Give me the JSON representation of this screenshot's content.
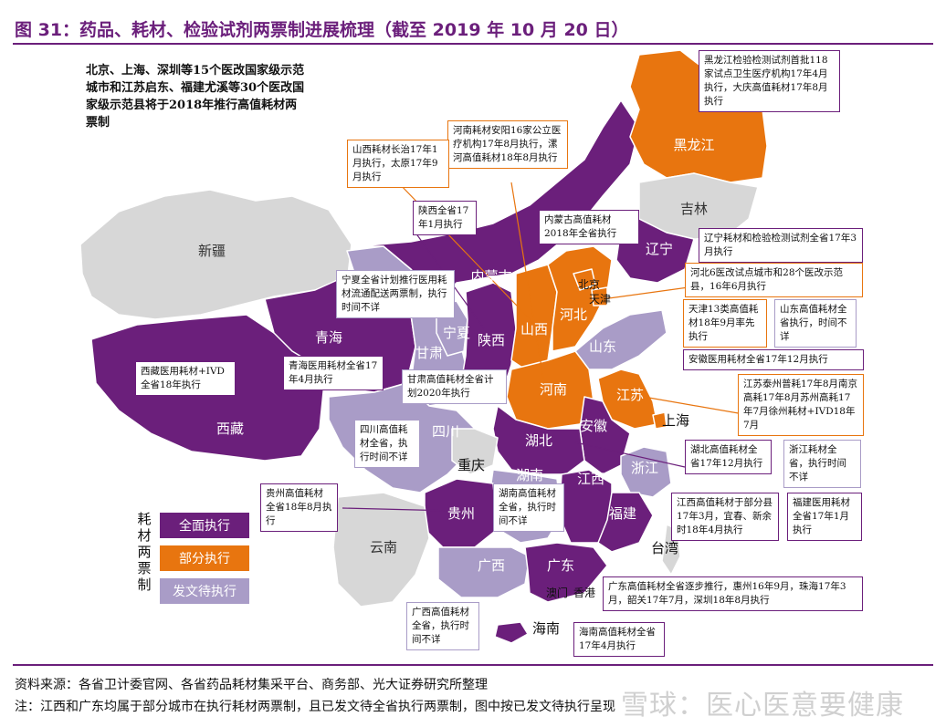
{
  "title": "图 31：药品、耗材、检验试剂两票制进展梳理（截至 2019 年 10 月 20 日）",
  "intro": "北京、上海、深圳等15个医改国家级示范城市和江苏启东、福建尤溪等30个医改国家级示范县将于2018年推行高值耗材两票制",
  "colors": {
    "full": "#6b1f7b",
    "partial": "#e8750f",
    "pending": "#a99cc7",
    "none": "#d7d7d7",
    "accent": "#6b1f7b"
  },
  "legend": {
    "title": "耗材两票制",
    "items": [
      {
        "label": "全面执行",
        "color": "#6b1f7b"
      },
      {
        "label": "部分执行",
        "color": "#e8750f"
      },
      {
        "label": "发文待执行",
        "color": "#a99cc7"
      }
    ]
  },
  "provinces": {
    "xinjiang": "新疆",
    "xizang": "西藏",
    "qinghai": "青海",
    "gansu": "甘肃",
    "ningxia": "宁夏",
    "neimenggu": "内蒙古",
    "heilongjiang": "黑龙江",
    "jilin": "吉林",
    "liaoning": "辽宁",
    "beijing": "北京",
    "tianjin": "天津",
    "hebei": "河北",
    "shanxi": "山西",
    "shandong": "山东",
    "shaanxi": "陕西",
    "henan": "河南",
    "jiangsu": "江苏",
    "shanghai": "上海",
    "anhui": "安徽",
    "hubei": "湖北",
    "sichuan": "四川",
    "chongqing": "重庆",
    "zhejiang": "浙江",
    "hunan": "湖南",
    "jiangxi": "江西",
    "guizhou": "贵州",
    "fujian": "福建",
    "yunnan": "云南",
    "guangxi": "广西",
    "guangdong": "广东",
    "taiwan": "台湾",
    "hainan": "海南",
    "aomen": "澳门",
    "xianggang": "香港"
  },
  "annotations": {
    "heilongjiang": "黑龙江检验检测试剂首批118家试点卫生医疗机构17年4月执行，大庆高值耗材17年8月执行",
    "henan": "河南耗材安阳16家公立医疗机构17年8月执行，漯河高值耗材18年8月执行",
    "shanxi": "山西耗材长治17年1月执行，太原17年9月执行",
    "shaanxi": "陕西全省17年1月执行",
    "neimenggu": "内蒙古高值耗材2018年全省执行",
    "liaoning": "辽宁耗材和检验检测试剂全省17年3月执行",
    "hebei": "河北6医改试点城市和28个医改示范县，16年6月执行",
    "ningxia": "宁夏全省计划推行医用耗材流通配送两票制，执行时间不详",
    "tianjin": "天津13类高值耗材18年9月率先执行",
    "shandong": "山东高值耗材全省执行，时间不详",
    "anhui": "安徽医用耗材全省17年12月执行",
    "qinghai": "青海医用耗材全省17年4月执行",
    "xizang": "西藏医用耗材+IVD全省18年执行",
    "gansu": "甘肃高值耗材全省计划2020年执行",
    "jiangsu": "江苏泰州普耗17年8月南京高耗17年8月苏州高耗17年7月徐州耗材+IVD18年7月",
    "sichuan": "四川高值耗材全省，执行时间不详",
    "hubei": "湖北高值耗材全省17年12月执行",
    "zhejiang": "浙江耗材全省，执行时间不详",
    "guizhou": "贵州高值耗材全省18年8月执行",
    "hunan": "湖南高值耗材全省，执行时间不详",
    "jiangxi": "江西高值耗材于部分县17年3月，宜春、新余时18年4月执行",
    "fujian": "福建医用耗材全省17年1月执行",
    "guangdong": "广东高值耗材全省逐步推行，惠州16年9月，珠海17年3月，韶关17年7月，深圳18年8月执行",
    "guangxi": "广西高值耗材全省，执行时间不详",
    "hainan": "海南高值耗材全省17年4月执行"
  },
  "source": "资料来源：各省卫计委官网、各省药品耗材集采平台、商务部、光大证券研究所整理",
  "note": "注：江西和广东均属于部分城市在执行耗材两票制，且已发文待全省执行两票制，图中按已发文待执行呈现",
  "watermark": "雪球：医心医意要健康"
}
